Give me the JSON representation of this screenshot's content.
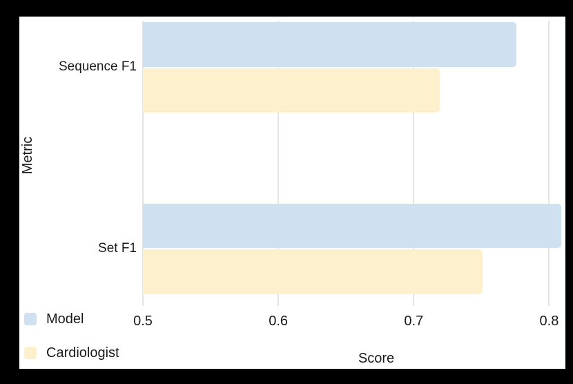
{
  "page": {
    "background": "#000000",
    "panel_background": "#ffffff",
    "gridline_color": "#e4e4e4",
    "text_color": "#1a1a1a"
  },
  "chart_data": {
    "type": "bar",
    "orientation": "horizontal",
    "title": "",
    "xlabel": "Score",
    "ylabel": "Metric",
    "categories": [
      "Sequence F1",
      "Set F1"
    ],
    "series": [
      {
        "name": "Model",
        "color": "#cfe0f1",
        "values": [
          0.776,
          0.809
        ]
      },
      {
        "name": "Cardiologist",
        "color": "#fdf1cd",
        "values": [
          0.719,
          0.751
        ]
      }
    ],
    "axis": {
      "xmin": 0.5,
      "xmax": 0.812
    },
    "xticks": [
      0.5,
      0.6,
      0.7,
      0.8
    ],
    "xtick_labels": [
      "0.5",
      "0.6",
      "0.7",
      "0.8"
    ],
    "grid": true,
    "legend_position": "bottom-left"
  }
}
